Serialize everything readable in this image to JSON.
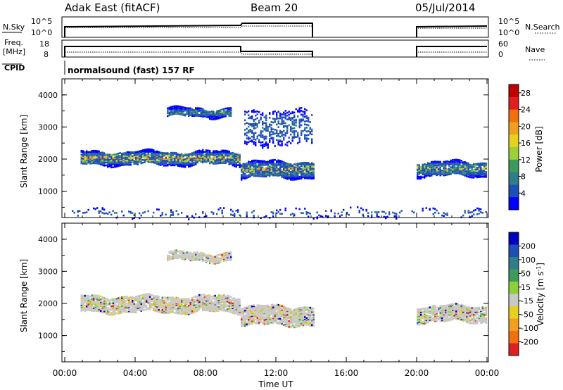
{
  "header": {
    "station": "Adak East (fitACF)",
    "beam": "Beam 20",
    "date": "05/Jul/2014"
  },
  "panels": {
    "nsky": {
      "left_label": "N.Sky",
      "right_label": "N.Search",
      "left_ticks": [
        "10^5",
        "10^0"
      ],
      "right_ticks": [
        "10^5",
        "10^0"
      ]
    },
    "freq": {
      "left_label_1": "Freq.",
      "left_label_2": "[MHz]",
      "right_label": "Nave",
      "left_ticks": [
        "18",
        "8"
      ],
      "right_ticks": [
        "60",
        "0"
      ]
    },
    "cpid": {
      "label": "CPID",
      "text": "normalsound (fast) 157 RF"
    }
  },
  "x_axis": {
    "label": "Time UT",
    "ticks": [
      "00:00",
      "04:00",
      "08:00",
      "12:00",
      "16:00",
      "20:00",
      "00:00"
    ]
  },
  "chart_data": [
    {
      "type": "heatmap",
      "name": "power",
      "ylabel": "Slant Range [km]",
      "xlabel": "Time UT",
      "xlim": [
        0,
        24
      ],
      "ylim": [
        180,
        4500
      ],
      "yticks": [
        "1000",
        "2000",
        "3000",
        "4000"
      ],
      "colorbar_label": "Power [dB]",
      "colorbar_ticks": [
        "4",
        "8",
        "12",
        "16",
        "20",
        "24",
        "28"
      ],
      "colorbar_range": [
        0,
        30
      ],
      "colors": [
        "#0000ff",
        "#1e4fb4",
        "#2f7d8a",
        "#3c9a5a",
        "#9ccf3a",
        "#e8d020",
        "#f0a020",
        "#f07010",
        "#e02020",
        "#c00000"
      ],
      "data_gaps_hours": [
        [
          14.1,
          20.0
        ]
      ],
      "regions": [
        {
          "t": [
            0.9,
            9.9
          ],
          "range_km": [
            1800,
            2200
          ],
          "level": "medium-high",
          "peak_db": 22
        },
        {
          "t": [
            10.0,
            14.1
          ],
          "range_km": [
            1400,
            1900
          ],
          "level": "medium-high",
          "peak_db": 20
        },
        {
          "t": [
            20.0,
            24.0
          ],
          "range_km": [
            1450,
            1900
          ],
          "level": "medium",
          "peak_db": 16
        },
        {
          "t": [
            5.8,
            9.4
          ],
          "range_km": [
            3300,
            3550
          ],
          "level": "medium",
          "peak_db": 14
        },
        {
          "t": [
            10.2,
            14.0
          ],
          "range_km": [
            2400,
            3500
          ],
          "level": "low",
          "peak_db": 6
        },
        {
          "t": [
            0.0,
            24.0
          ],
          "range_km": [
            180,
            400
          ],
          "level": "low-speckle",
          "peak_db": 6
        }
      ]
    },
    {
      "type": "heatmap",
      "name": "velocity",
      "ylabel": "Slant Range [km]",
      "xlabel": "Time UT",
      "xlim": [
        0,
        24
      ],
      "ylim": [
        180,
        4500
      ],
      "yticks": [
        "1000",
        "2000",
        "3000",
        "4000"
      ],
      "colorbar_label": "Velocity [m s^-1]",
      "colorbar_ticks": [
        "200",
        "100",
        "50",
        "15",
        "-15",
        "-50",
        "-100",
        "-200"
      ],
      "colors": [
        "#0000c0",
        "#1e4fb4",
        "#2f7d8a",
        "#3c9a5a",
        "#8ccf3a",
        "#c8c8c8",
        "#e8d020",
        "#f0a020",
        "#f07010",
        "#e02020"
      ],
      "data_gaps_hours": [
        [
          14.1,
          20.0
        ]
      ],
      "regions": [
        {
          "t": [
            0.9,
            9.9
          ],
          "range_km": [
            1700,
            2200
          ],
          "dominant_velocity": "-15 to 15"
        },
        {
          "t": [
            10.0,
            14.1
          ],
          "range_km": [
            1300,
            1900
          ],
          "dominant_velocity": "-15 to 15"
        },
        {
          "t": [
            20.0,
            24.0
          ],
          "range_km": [
            1400,
            1900
          ],
          "dominant_velocity": "-15 to 15"
        },
        {
          "t": [
            5.8,
            9.4
          ],
          "range_km": [
            3300,
            3550
          ],
          "dominant_velocity": "-15 to 15"
        }
      ]
    }
  ]
}
